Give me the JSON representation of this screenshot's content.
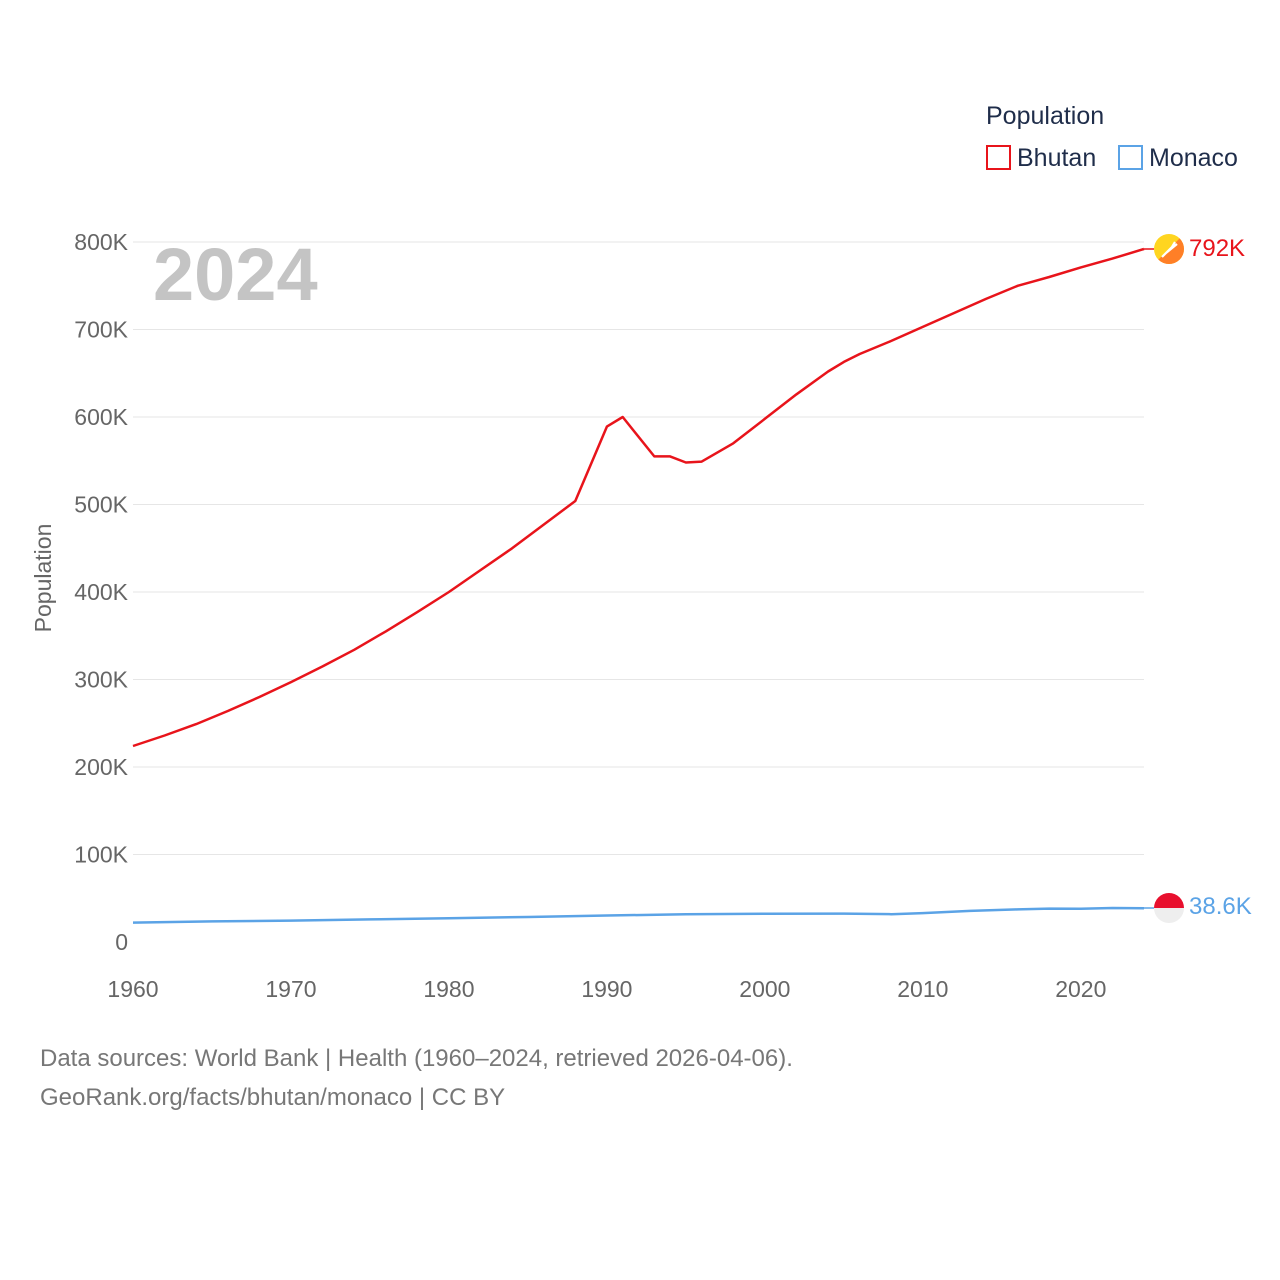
{
  "chart_data": {
    "type": "line",
    "current_year_label": "2024",
    "ylabel": "Population",
    "ylim": [
      0,
      800000
    ],
    "xlim": [
      1960,
      2024
    ],
    "y_ticks": [
      0,
      100000,
      200000,
      300000,
      400000,
      500000,
      600000,
      700000,
      800000
    ],
    "y_tick_labels": [
      "0",
      "100K",
      "200K",
      "300K",
      "400K",
      "500K",
      "600K",
      "700K",
      "800K"
    ],
    "x_ticks": [
      1960,
      1970,
      1980,
      1990,
      2000,
      2010,
      2020
    ],
    "x_tick_labels": [
      "1960",
      "1970",
      "1980",
      "1990",
      "2000",
      "2010",
      "2020"
    ],
    "legend": {
      "title": "Population",
      "placement": "top-right"
    },
    "series": [
      {
        "name": "Bhutan",
        "color": "#e8141b",
        "flag": "bhutan-flag-icon",
        "end_label": "792K",
        "points": [
          [
            1960,
            224000
          ],
          [
            1962,
            236000
          ],
          [
            1964,
            249000
          ],
          [
            1966,
            264000
          ],
          [
            1968,
            280000
          ],
          [
            1970,
            297000
          ],
          [
            1972,
            315000
          ],
          [
            1974,
            334000
          ],
          [
            1976,
            355000
          ],
          [
            1978,
            377000
          ],
          [
            1980,
            400000
          ],
          [
            1982,
            425000
          ],
          [
            1984,
            450000
          ],
          [
            1986,
            477000
          ],
          [
            1988,
            504000
          ],
          [
            1990,
            589000
          ],
          [
            1991,
            600000
          ],
          [
            1993,
            555000
          ],
          [
            1994,
            555000
          ],
          [
            1995,
            548000
          ],
          [
            1996,
            549000
          ],
          [
            1998,
            570000
          ],
          [
            2000,
            598000
          ],
          [
            2002,
            626000
          ],
          [
            2004,
            652000
          ],
          [
            2005,
            663000
          ],
          [
            2006,
            672000
          ],
          [
            2008,
            687000
          ],
          [
            2010,
            703000
          ],
          [
            2012,
            719000
          ],
          [
            2014,
            735000
          ],
          [
            2016,
            750000
          ],
          [
            2017,
            755000
          ],
          [
            2018,
            760000
          ],
          [
            2020,
            771000
          ],
          [
            2022,
            781000
          ],
          [
            2024,
            792000
          ]
        ]
      },
      {
        "name": "Monaco",
        "color": "#5ba3e6",
        "flag": "monaco-flag-icon",
        "end_label": "38.6K",
        "points": [
          [
            1960,
            22200
          ],
          [
            1965,
            23600
          ],
          [
            1970,
            24500
          ],
          [
            1975,
            25800
          ],
          [
            1980,
            27200
          ],
          [
            1985,
            28600
          ],
          [
            1990,
            30300
          ],
          [
            1995,
            31700
          ],
          [
            2000,
            32300
          ],
          [
            2005,
            32500
          ],
          [
            2008,
            31800
          ],
          [
            2010,
            33000
          ],
          [
            2013,
            35500
          ],
          [
            2016,
            37300
          ],
          [
            2018,
            38200
          ],
          [
            2020,
            38100
          ],
          [
            2022,
            38900
          ],
          [
            2024,
            38600
          ]
        ]
      }
    ]
  },
  "footer": {
    "line1": "Data sources: World Bank | Health (1960–2024, retrieved 2026-04-06).",
    "line2": "GeoRank.org/facts/bhutan/monaco | CC BY"
  }
}
